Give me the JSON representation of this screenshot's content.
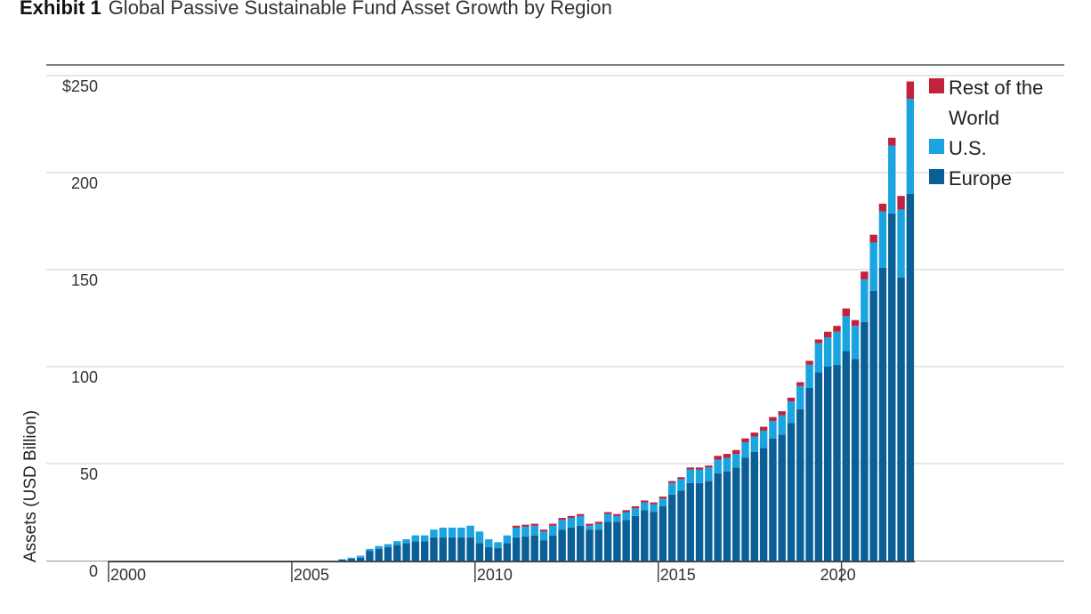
{
  "header": {
    "exhibit": "Exhibit 1",
    "title": "Global Passive Sustainable Fund Asset Growth by Region"
  },
  "chart_data": {
    "type": "bar",
    "stacked": true,
    "frequency": "quarterly",
    "title": "Global Passive Sustainable Fund Asset Growth by Region",
    "ylabel": "Assets (USD Billion)",
    "xlabel": "",
    "ylim": [
      0,
      250
    ],
    "yticks": [
      0,
      50,
      100,
      150,
      200,
      250
    ],
    "ytick_labels": [
      "0",
      "50",
      "100",
      "150",
      "200",
      "$250"
    ],
    "xticks": [
      "2000",
      "2005",
      "2010",
      "2015",
      "2020"
    ],
    "x_start": "2000 Q1",
    "grid": true,
    "legend_position": "right",
    "colors": {
      "Europe": "#0b5f97",
      "U.S.": "#1aa4e0",
      "Rest of the World": "#c3223e"
    },
    "series": [
      {
        "name": "Europe",
        "values": [
          0,
          0,
          0,
          0,
          0,
          0,
          0,
          0,
          0,
          0,
          0,
          0,
          0,
          0,
          0,
          0,
          0,
          0,
          0,
          0,
          0,
          0,
          0,
          0,
          0,
          0.5,
          1,
          1.5,
          5,
          6,
          7,
          8,
          9,
          10,
          10,
          12,
          12,
          12,
          12,
          12,
          9,
          7,
          6.5,
          9,
          12,
          12.5,
          13,
          10.5,
          13,
          16,
          17,
          18,
          16,
          16,
          20,
          20,
          21,
          23,
          26,
          25,
          28,
          34,
          36,
          40,
          40,
          41,
          45,
          46,
          48,
          53,
          56,
          58,
          63,
          65,
          71,
          78,
          89,
          97,
          100,
          101,
          108,
          104,
          123,
          139,
          151,
          179,
          146,
          189
        ]
      },
      {
        "name": "U.S.",
        "values": [
          0,
          0,
          0,
          0,
          0,
          0,
          0,
          0,
          0,
          0,
          0,
          0,
          0,
          0,
          0,
          0,
          0,
          0,
          0,
          0,
          0,
          0,
          0,
          0,
          0,
          0.2,
          0.5,
          1,
          1,
          1.5,
          1.5,
          2,
          2,
          3,
          3,
          4,
          5,
          5,
          5,
          6,
          6,
          4,
          3,
          4,
          5,
          5,
          5,
          4.5,
          5,
          5,
          5,
          5,
          2,
          3,
          4,
          3,
          4,
          4,
          4,
          4,
          4,
          6,
          6,
          7,
          7,
          7,
          7,
          7,
          7,
          8,
          8,
          9,
          9,
          10,
          11,
          12,
          12,
          15,
          15,
          17,
          18,
          17,
          22,
          25,
          29,
          35,
          35,
          49
        ]
      },
      {
        "name": "Rest of the World",
        "values": [
          0,
          0,
          0,
          0,
          0,
          0,
          0,
          0,
          0,
          0,
          0,
          0,
          0,
          0,
          0,
          0,
          0,
          0,
          0,
          0,
          0,
          0,
          0,
          0,
          0,
          0,
          0,
          0,
          0,
          0,
          0,
          0,
          0,
          0,
          0,
          0,
          0,
          0,
          0,
          0,
          0,
          0,
          0,
          0,
          1,
          1,
          1,
          1,
          1,
          1,
          1,
          1,
          1,
          1,
          1,
          1,
          1,
          1,
          1,
          1,
          1,
          1,
          1,
          1,
          1,
          1,
          2,
          2,
          2,
          2,
          2,
          2,
          2,
          2,
          2,
          2,
          2,
          2,
          3,
          3,
          4,
          3,
          4,
          4,
          4,
          4,
          7,
          9
        ]
      }
    ]
  }
}
